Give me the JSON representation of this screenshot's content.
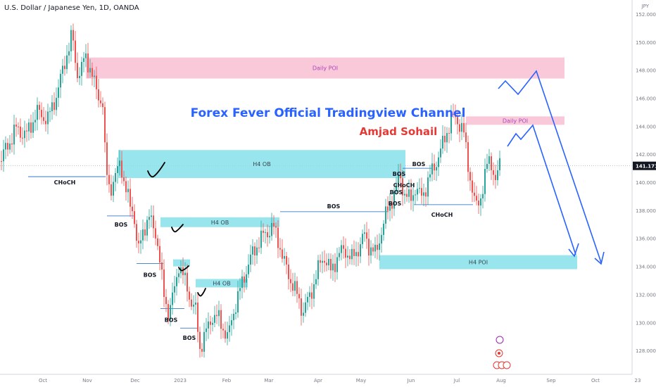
{
  "header": {
    "symbol_title": "U.S. Dollar / Japanese Yen, 1D, OANDA",
    "currency": "JPY"
  },
  "annotations": {
    "channel_title": "Forex Fever Official Tradingview Channel",
    "author": "Amjad Sohail",
    "daily_poi_label": "Daily POI",
    "h4_ob_label": "H4 OB",
    "h4_poi_label": "H4 POI",
    "bos_label": "BOS",
    "choch_label": "CHoCH"
  },
  "colors": {
    "up": "#26a69a",
    "down": "#ef5350",
    "poi_pink": "#f8bbd0",
    "ob_cyan": "#80deea",
    "projection_blue": "#2962ff",
    "title_blue": "#2962ff",
    "author_red": "#e53935",
    "price_tag": "#131722"
  },
  "chart_data": {
    "type": "candlestick",
    "title": "U.S. Dollar / Japanese Yen, 1D, OANDA",
    "ylim": [
      126.5,
      152.6
    ],
    "y_ticks": [
      "152.000",
      "150.000",
      "148.000",
      "146.000",
      "144.000",
      "142.000",
      "140.000",
      "138.000",
      "136.000",
      "134.000",
      "132.000",
      "130.000",
      "128.000"
    ],
    "x_ticks": [
      "Oct",
      "Nov",
      "Dec",
      "2023",
      "Feb",
      "Mar",
      "Apr",
      "May",
      "Jun",
      "Jul",
      "Aug",
      "Sep",
      "Oct",
      "23"
    ],
    "last_price": "141.171",
    "zones": [
      {
        "label": "Daily POI",
        "from": "Nov",
        "to": "Sep",
        "y_low": 147.4,
        "y_high": 148.9,
        "kind": "pink"
      },
      {
        "label": "Daily POI",
        "from": "Jul",
        "to": "Aug",
        "y_low": 144.1,
        "y_high": 144.7,
        "kind": "pink"
      },
      {
        "label": "H4 OB",
        "from": "Dec",
        "to": "Jun",
        "y_low": 140.3,
        "y_high": 142.3,
        "kind": "cyan"
      },
      {
        "label": "H4 OB",
        "from": "Dec",
        "to": "Mar",
        "y_low": 136.8,
        "y_high": 137.5,
        "kind": "cyan"
      },
      {
        "label": "",
        "from": "Dec",
        "to": "2023",
        "y_low": 134.0,
        "y_high": 134.5,
        "kind": "cyan"
      },
      {
        "label": "H4 OB",
        "from": "2023",
        "to": "Feb",
        "y_low": 132.5,
        "y_high": 133.1,
        "kind": "cyan"
      },
      {
        "label": "H4 POI",
        "from": "May",
        "to": "Sep",
        "y_low": 133.8,
        "y_high": 134.8,
        "kind": "cyan"
      }
    ],
    "structure_labels": [
      "CHoCH",
      "BOS",
      "BOS",
      "BOS",
      "BOS",
      "BOS",
      "BOS",
      "BOS",
      "CHoCH",
      "BOS",
      "CHoCH"
    ]
  }
}
